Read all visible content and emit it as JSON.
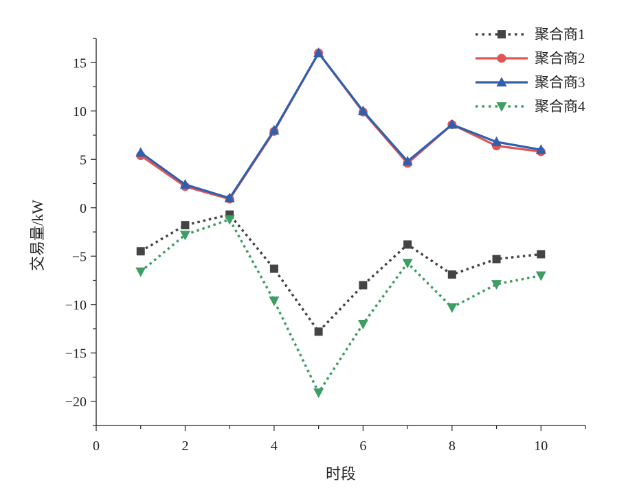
{
  "chart_data": {
    "type": "line",
    "xlabel": "时段",
    "ylabel": "交易量/kW",
    "xlim": [
      0,
      11
    ],
    "ylim": [
      -22.5,
      17.5
    ],
    "xticks": [
      0,
      2,
      4,
      6,
      8,
      10
    ],
    "yticks": [
      -20,
      -15,
      -10,
      -5,
      0,
      5,
      10,
      15
    ],
    "grid": false,
    "legend_position": "top-right",
    "x": [
      1,
      2,
      3,
      4,
      5,
      6,
      7,
      8,
      9,
      10
    ],
    "series": [
      {
        "name": "聚合商1",
        "color": "#444444",
        "marker": "square",
        "line": "dotted",
        "values": [
          -4.5,
          -1.8,
          -0.7,
          -6.3,
          -12.8,
          -8.0,
          -3.8,
          -6.9,
          -5.3,
          -4.8
        ]
      },
      {
        "name": "聚合商2",
        "color": "#e05555",
        "marker": "circle",
        "line": "solid",
        "values": [
          5.4,
          2.2,
          0.9,
          7.9,
          16.0,
          9.9,
          4.6,
          8.6,
          6.4,
          5.8
        ]
      },
      {
        "name": "聚合商3",
        "color": "#2f5fad",
        "marker": "triangle-up",
        "line": "solid",
        "values": [
          5.7,
          2.4,
          1.0,
          8.0,
          16.0,
          10.0,
          4.8,
          8.6,
          6.8,
          6.0
        ]
      },
      {
        "name": "聚合商4",
        "color": "#3d9e64",
        "marker": "triangle-down",
        "line": "dotted",
        "values": [
          -6.6,
          -2.8,
          -1.2,
          -9.6,
          -19.1,
          -12.0,
          -5.7,
          -10.3,
          -7.9,
          -7.0
        ]
      }
    ]
  }
}
